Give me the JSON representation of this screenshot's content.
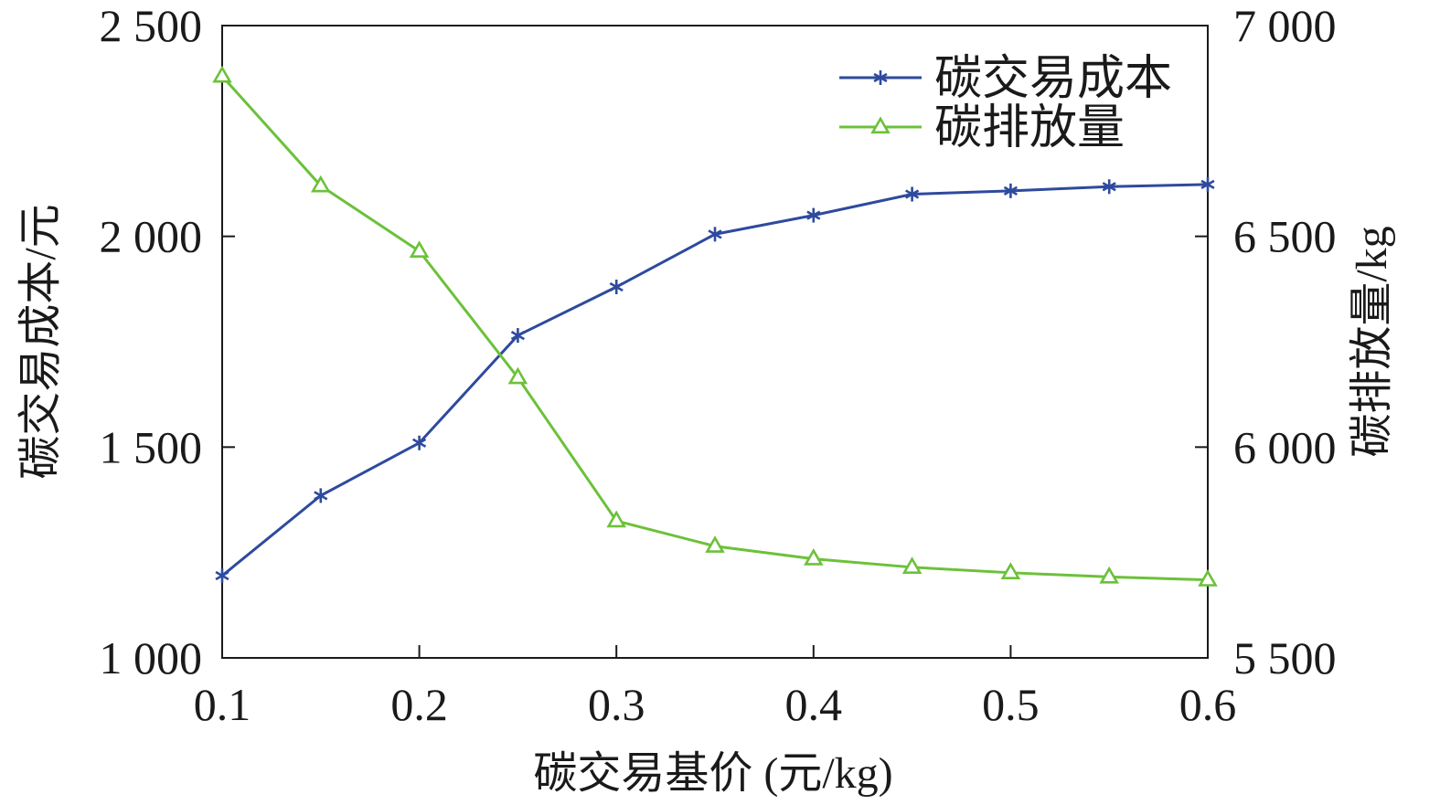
{
  "chart_data": {
    "type": "line",
    "xlabel": "碳交易基价 (元/kg)",
    "ylabel_left": "碳交易成本/元",
    "ylabel_right": "碳排放量/kg",
    "x": [
      0.1,
      0.15,
      0.2,
      0.25,
      0.3,
      0.35,
      0.4,
      0.45,
      0.5,
      0.55,
      0.6
    ],
    "xlim": [
      0.1,
      0.6
    ],
    "ylim_left": [
      1000,
      2500
    ],
    "ylim_right": [
      5500,
      7000
    ],
    "x_ticks": [
      0.1,
      0.2,
      0.3,
      0.4,
      0.5,
      0.6
    ],
    "x_tick_labels": [
      "0.1",
      "0.2",
      "0.3",
      "0.4",
      "0.5",
      "0.6"
    ],
    "y_left_ticks": [
      1000,
      1500,
      2000,
      2500
    ],
    "y_left_tick_labels": [
      "1 000",
      "1 500",
      "2 000",
      "2 500"
    ],
    "y_right_ticks": [
      5500,
      6000,
      6500,
      7000
    ],
    "y_right_tick_labels": [
      "5 500",
      "6 000",
      "6 500",
      "7 000"
    ],
    "legend_position": "top-right",
    "grid": false,
    "series": [
      {
        "name": "碳交易成本",
        "axis": "left",
        "marker": "asterisk",
        "color": "#2e4a9e",
        "values": [
          1195,
          1385,
          1510,
          1765,
          1880,
          2005,
          2050,
          2100,
          2108,
          2118,
          2123
        ]
      },
      {
        "name": "碳排放量",
        "axis": "right",
        "marker": "triangle",
        "color": "#6cc13a",
        "values": [
          6880,
          6620,
          6465,
          6165,
          5825,
          5765,
          5735,
          5715,
          5702,
          5692,
          5685
        ]
      }
    ]
  }
}
